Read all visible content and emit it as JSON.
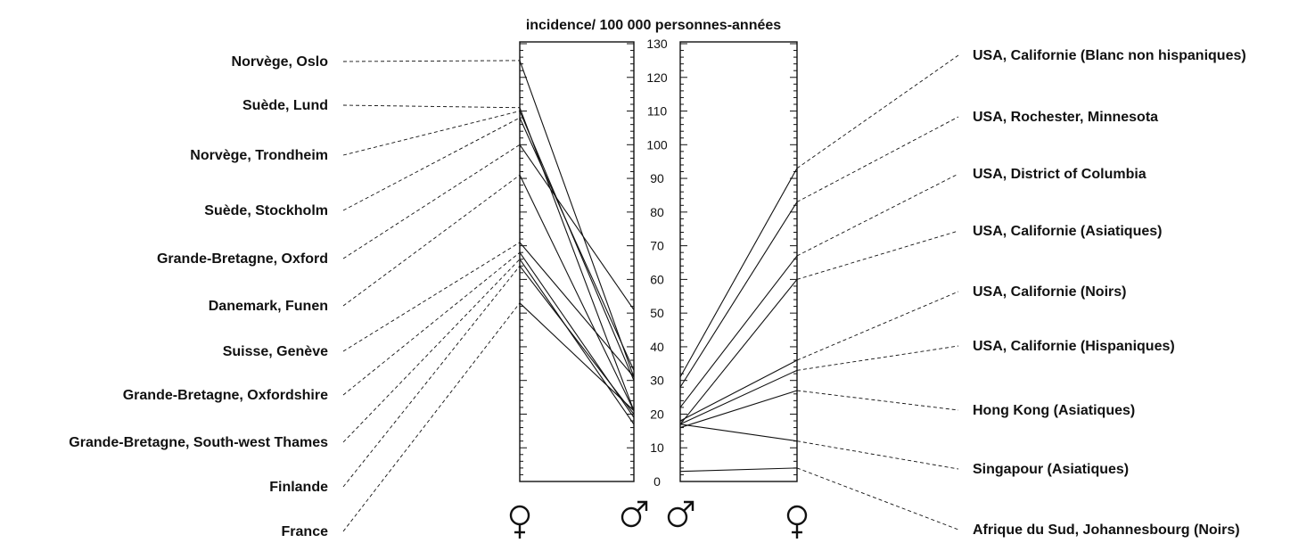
{
  "chart_data": {
    "type": "line",
    "title": "incidence/ 100 000 personnes-années",
    "ylim": [
      0,
      130
    ],
    "yticks": [
      "0",
      "10",
      "20",
      "30",
      "40",
      "50",
      "60",
      "70",
      "80",
      "90",
      "100",
      "110",
      "120",
      "130"
    ],
    "grid": false,
    "panels": [
      {
        "name": "left",
        "x": [
          "female",
          "male"
        ],
        "symbols": [
          "♀",
          "♂"
        ],
        "series": [
          {
            "name": "Norvège, Oslo",
            "values": [
              125,
              31
            ]
          },
          {
            "name": "Suède, Lund",
            "values": [
              111,
              21
            ]
          },
          {
            "name": "Norvège, Trondheim",
            "values": [
              110,
              30
            ]
          },
          {
            "name": "Suède, Stockholm",
            "values": [
              108,
              33
            ]
          },
          {
            "name": "Grande-Bretagne, Oxford",
            "values": [
              100,
              51
            ]
          },
          {
            "name": "Danemark, Funen",
            "values": [
              91,
              21
            ]
          },
          {
            "name": "Suisse, Genève",
            "values": [
              71,
              31
            ]
          },
          {
            "name": "Grande-Bretagne, Oxfordshire",
            "values": [
              68,
              19
            ]
          },
          {
            "name": "Grande-Bretagne, South-west Thames",
            "values": [
              66,
              17
            ]
          },
          {
            "name": "Finlande",
            "values": [
              64,
              20
            ]
          },
          {
            "name": "France",
            "values": [
              53,
              21
            ]
          }
        ]
      },
      {
        "name": "right",
        "x": [
          "male",
          "female"
        ],
        "symbols": [
          "♂",
          "♀"
        ],
        "series": [
          {
            "name": "USA, Californie (Blanc non hispaniques)",
            "values": [
              31,
              93
            ]
          },
          {
            "name": "USA, Rochester, Minnesota",
            "values": [
              28,
              83
            ]
          },
          {
            "name": "USA, District of Columbia",
            "values": [
              22,
              67
            ]
          },
          {
            "name": "USA, Californie (Asiatiques)",
            "values": [
              17,
              60
            ]
          },
          {
            "name": "USA, Californie (Noirs)",
            "values": [
              18,
              36
            ]
          },
          {
            "name": "USA, Californie (Hispaniques)",
            "values": [
              17,
              33
            ]
          },
          {
            "name": "Hong Kong (Asiatiques)",
            "values": [
              16,
              27
            ]
          },
          {
            "name": "Singapour (Asiatiques)",
            "values": [
              17,
              12
            ]
          },
          {
            "name": "Afrique du Sud, Johannesbourg (Noirs)",
            "values": [
              3,
              4
            ]
          }
        ]
      }
    ]
  }
}
